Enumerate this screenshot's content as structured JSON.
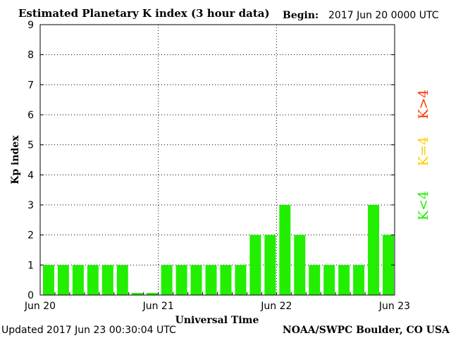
{
  "header": {
    "begin_label": "Begin:",
    "begin_value": "2017 Jun 20 0000 UTC"
  },
  "footer": {
    "updated": "Updated 2017 Jun 23 00:30:04 UTC",
    "credit": "NOAA/SWPC Boulder, CO USA"
  },
  "legend": {
    "high": {
      "label": "K>4",
      "color": "#ff3300"
    },
    "equal": {
      "label": "K=4",
      "color": "#ffcc00"
    },
    "low": {
      "label": "K<4",
      "color": "#22ee00"
    }
  },
  "chart_data": {
    "type": "bar",
    "title": "Estimated Planetary K index (3 hour data)",
    "xlabel": "Universal Time",
    "ylabel": "Kp index",
    "ylim": [
      0,
      9
    ],
    "yticks": [
      "0",
      "1",
      "2",
      "3",
      "4",
      "5",
      "6",
      "7",
      "8",
      "9"
    ],
    "xticks": [
      "Jun 20",
      "Jun 21",
      "Jun 22",
      "Jun 23"
    ],
    "bar_color": "#22ee00",
    "grid": true,
    "values": [
      1,
      1,
      1,
      1,
      1,
      1,
      0.07,
      0.07,
      1,
      1,
      1,
      1,
      1,
      1,
      2,
      2,
      3,
      2,
      1,
      1,
      1,
      1,
      3,
      2
    ]
  }
}
